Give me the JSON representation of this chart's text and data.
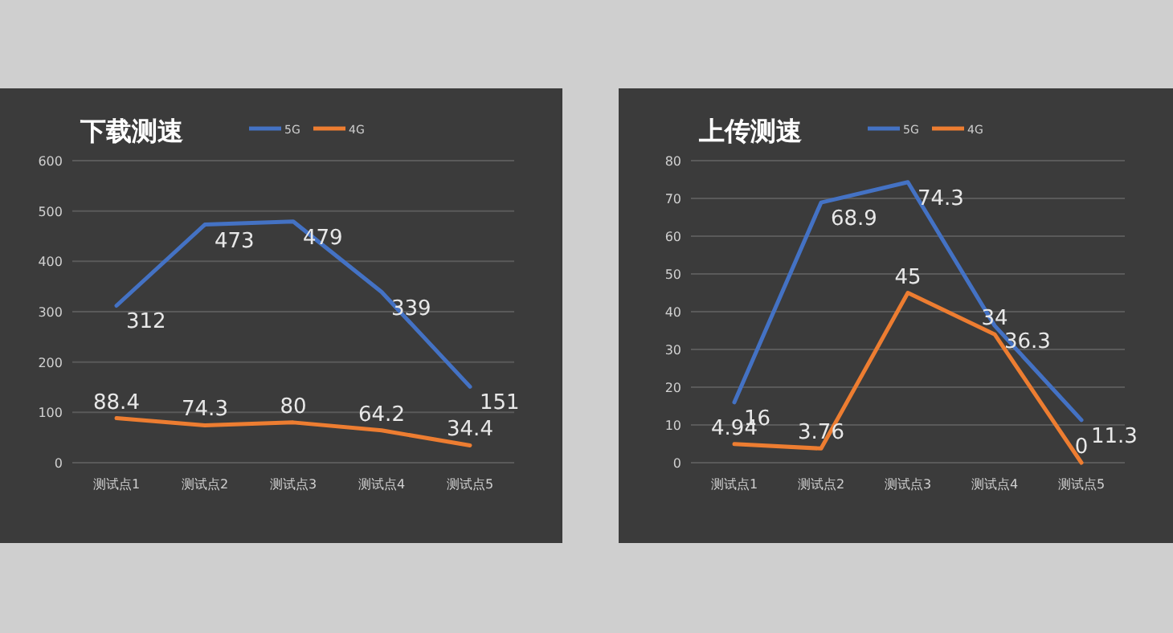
{
  "chart_data": [
    {
      "type": "line",
      "title": "下载测速",
      "categories": [
        "测试点1",
        "测试点2",
        "测试点3",
        "测试点4",
        "测试点5"
      ],
      "series": [
        {
          "name": "5G",
          "color": "#4472c4",
          "values": [
            312,
            473,
            479,
            339,
            151
          ]
        },
        {
          "name": "4G",
          "color": "#ed7d31",
          "values": [
            88.4,
            74.3,
            80,
            64.2,
            34.4
          ]
        }
      ],
      "ylim": [
        0,
        600
      ],
      "yticks": [
        0,
        100,
        200,
        300,
        400,
        500,
        600
      ],
      "grid": "y",
      "legend": "top",
      "data_labels": true
    },
    {
      "type": "line",
      "title": "上传测速",
      "categories": [
        "测试点1",
        "测试点2",
        "测试点3",
        "测试点4",
        "测试点5"
      ],
      "series": [
        {
          "name": "5G",
          "color": "#4472c4",
          "values": [
            16,
            68.9,
            74.3,
            36.3,
            11.3
          ]
        },
        {
          "name": "4G",
          "color": "#ed7d31",
          "values": [
            4.94,
            3.76,
            45,
            34,
            0
          ]
        }
      ],
      "ylim": [
        0,
        80
      ],
      "yticks": [
        0,
        10,
        20,
        30,
        40,
        50,
        60,
        70,
        80
      ],
      "grid": "y",
      "legend": "top",
      "data_labels": true
    }
  ]
}
